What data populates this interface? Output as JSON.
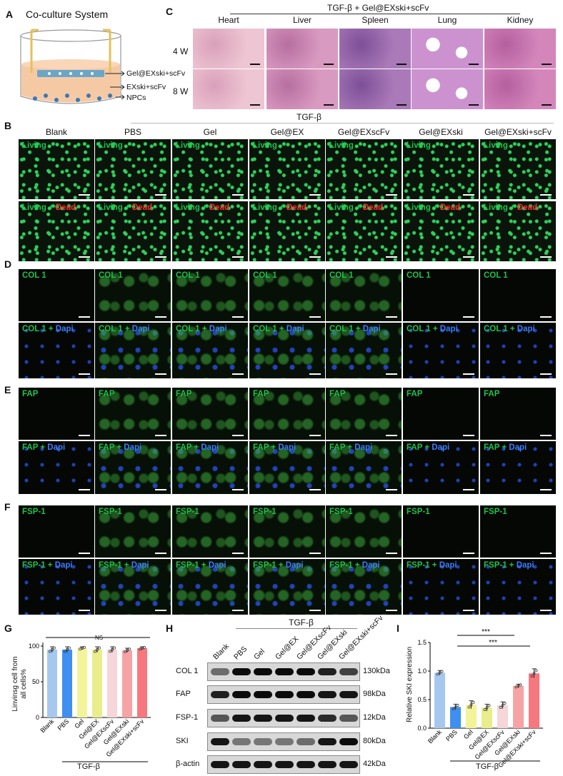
{
  "panels": {
    "a": "A",
    "b": "B",
    "c": "C",
    "d": "D",
    "e": "E",
    "f": "F",
    "g": "G",
    "h": "H",
    "i": "I"
  },
  "panelA": {
    "title": "Co-culture System",
    "labels": [
      "Gel@EXski+scFv",
      "EXski+scFv",
      "NPCs"
    ]
  },
  "panelC": {
    "header": "TGF-β + Gel@EXski+scFv",
    "columns": [
      "Heart",
      "Liver",
      "Spleen",
      "Lung",
      "Kidney"
    ],
    "rows": [
      "4 W",
      "8 W"
    ]
  },
  "groupsTop": {
    "tgf": "TGF-β",
    "groups": [
      "Blank",
      "PBS",
      "Gel",
      "Gel@EX",
      "Gel@EXscFv",
      "Gel@EXski",
      "Gel@EXski+scFv"
    ]
  },
  "stainLabels": {
    "b1": "Living",
    "b2a": "Living",
    "b2b": " + ",
    "b2c": "Dead",
    "d1": "COL 1",
    "d2a": "COL 1 + ",
    "d2b": "Dapi",
    "e1": "FAP",
    "e2a": "FAP + ",
    "e2b": "Dapi",
    "f1": "FSP-1",
    "f2a": "FSP-1 + ",
    "f2b": "Dapi"
  },
  "panelG": {
    "ylabel": "Linvinsg cell from all cells%",
    "yticks": [
      "0",
      "50",
      "100"
    ],
    "ns": "NS",
    "categories": [
      "Blank",
      "PBS",
      "Gel",
      "Gel@EX",
      "Gel@EXscFv",
      "Gel@EXski",
      "Gel@EXski+scFv"
    ],
    "tgf": "TGF-β"
  },
  "panelH": {
    "tgf": "TGF-β",
    "lanes": [
      "Blank",
      "PBS",
      "Gel",
      "Gel@EX",
      "Gel@EXscFv",
      "Gel@EXski",
      "Gel@EXski+scFv"
    ],
    "proteins": [
      "COL 1",
      "FAP",
      "FSP-1",
      "SKI",
      "β-actin"
    ],
    "sizes": [
      "130kDa",
      "98kDa",
      "12kDa",
      "80kDa",
      "42kDa"
    ]
  },
  "panelI": {
    "ylabel": "Relative SKI expression",
    "yticks": [
      "0.0",
      "0.5",
      "1.0",
      "1.5"
    ],
    "sig1": "***",
    "sig2": "***",
    "categories": [
      "Blank",
      "PBS",
      "Gel",
      "Gel@EX",
      "Gel@EXscFv",
      "Gel@EXski",
      "Gel@EXski+scFv"
    ],
    "tgf": "TGF-β"
  },
  "colors": {
    "blank": "#a7c8ee",
    "pbs": "#3f8ff0",
    "gel": "#f3f49a",
    "gelex": "#e9ed8c",
    "scfv": "#f6d6d8",
    "ski": "#f6a3a6",
    "skiscfv": "#f7777e"
  },
  "chart_data": [
    {
      "type": "bar",
      "title": "",
      "xlabel": "TGF-β",
      "ylabel": "Linvinsg cell from all cells%",
      "categories": [
        "Blank",
        "PBS",
        "Gel",
        "Gel@EX",
        "Gel@EXscFv",
        "Gel@EXski",
        "Gel@EXski+scFv"
      ],
      "values": [
        95,
        95,
        97,
        95,
        95,
        94,
        97
      ],
      "ylim": [
        0,
        105
      ]
    },
    {
      "type": "bar",
      "title": "",
      "xlabel": "TGF-β",
      "ylabel": "Relative SKI expression",
      "categories": [
        "Blank",
        "PBS",
        "Gel",
        "Gel@EX",
        "Gel@EXscFv",
        "Gel@EXski",
        "Gel@EXski+scFv"
      ],
      "values": [
        0.97,
        0.37,
        0.41,
        0.36,
        0.4,
        0.74,
        0.96
      ],
      "ylim": [
        0,
        1.5
      ]
    }
  ]
}
